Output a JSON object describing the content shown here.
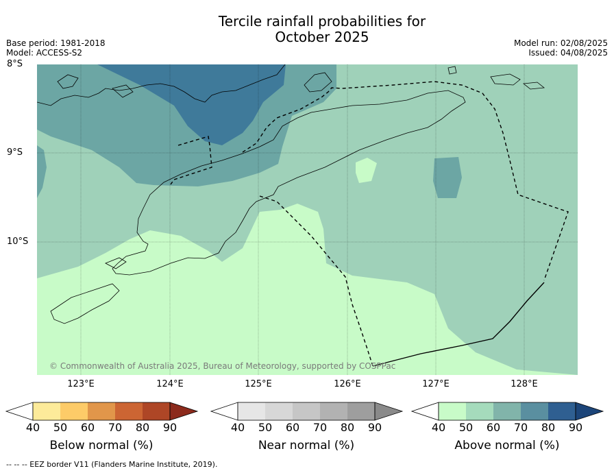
{
  "title": {
    "line1": "Tercile rainfall probabilities for",
    "line2": "October 2025"
  },
  "meta": {
    "base_period": "Base period: 1981-2018",
    "model": "Model: ACCESS-S2",
    "model_run": "Model run: 02/08/2025",
    "issued": "Issued: 04/08/2025"
  },
  "map": {
    "lat_labels": [
      "8°S",
      "9°S",
      "10°S"
    ],
    "lon_labels": [
      "123°E",
      "124°E",
      "125°E",
      "126°E",
      "127°E",
      "128°E"
    ],
    "copyright": "© Commonwealth of Australia 2025, Bureau of Meteorology, supported by COSPPac",
    "colors": {
      "above_40_50": "#c8fbc8",
      "above_50_60": "#9fd1b9",
      "above_60_70": "#6ca6a4",
      "above_70_80": "#3f7a9a",
      "land_outline": "#000000"
    }
  },
  "colorbars": [
    {
      "title": "Below normal (%)",
      "ticks": [
        "40",
        "50",
        "60",
        "70",
        "80",
        "90"
      ],
      "colors": [
        "#ffffff",
        "#fdeb9a",
        "#fdcb68",
        "#e1964a",
        "#cc6533",
        "#ae4626",
        "#8c2a1c"
      ]
    },
    {
      "title": "Near normal (%)",
      "ticks": [
        "40",
        "50",
        "60",
        "70",
        "80",
        "90"
      ],
      "colors": [
        "#ffffff",
        "#e6e6e6",
        "#d7d7d7",
        "#c6c6c6",
        "#b2b2b2",
        "#9e9e9e",
        "#8a8a8a"
      ]
    },
    {
      "title": "Above normal (%)",
      "ticks": [
        "40",
        "50",
        "60",
        "70",
        "80",
        "90"
      ],
      "colors": [
        "#ffffff",
        "#c8fbc8",
        "#a5dbbc",
        "#81b4aa",
        "#5a8fa0",
        "#2f5f91",
        "#1c4579"
      ]
    }
  ],
  "footer": "-- -- -- EEZ border V11 (Flanders Marine Institute, 2019)."
}
